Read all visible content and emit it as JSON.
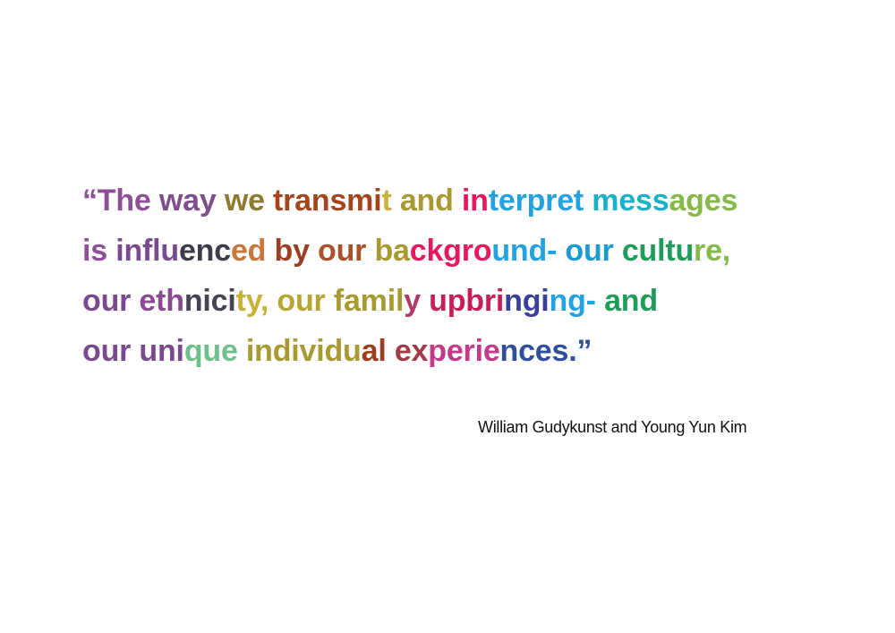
{
  "quote": {
    "lines": [
      [
        {
          "text": "“The ",
          "color": "#8e4f98"
        },
        {
          "text": "way ",
          "color": "#7d4f8d"
        },
        {
          "text": "we ",
          "color": "#8c7a2e"
        },
        {
          "text": "transmi",
          "color": "#a4451e"
        },
        {
          "text": "t ",
          "color": "#c8b23a"
        },
        {
          "text": "and ",
          "color": "#a79a33"
        },
        {
          "text": "in",
          "color": "#e5195c"
        },
        {
          "text": "terpret ",
          "color": "#22a2df"
        },
        {
          "text": "mess",
          "color": "#1bb2c9"
        },
        {
          "text": "ages",
          "color": "#86b94a"
        }
      ],
      [
        {
          "text": "is ",
          "color": "#8e4f98"
        },
        {
          "text": "influ",
          "color": "#7a4a8f"
        },
        {
          "text": "enc",
          "color": "#3d3d4a"
        },
        {
          "text": "ed ",
          "color": "#c8763a"
        },
        {
          "text": "by ",
          "color": "#9b3f22"
        },
        {
          "text": "our ",
          "color": "#a9512a"
        },
        {
          "text": "ba",
          "color": "#a79a33"
        },
        {
          "text": "ckgro",
          "color": "#e5195c"
        },
        {
          "text": "und- ",
          "color": "#22a2df"
        },
        {
          "text": "our ",
          "color": "#1b9bd0"
        },
        {
          "text": "cultu",
          "color": "#1f9c5c"
        },
        {
          "text": "re,",
          "color": "#86b94a"
        }
      ],
      [
        {
          "text": "our ",
          "color": "#7a4a8f"
        },
        {
          "text": "eth",
          "color": "#8a4a92"
        },
        {
          "text": "nici",
          "color": "#444455"
        },
        {
          "text": "ty, ",
          "color": "#c8b23a"
        },
        {
          "text": "our ",
          "color": "#b4a632"
        },
        {
          "text": "famil",
          "color": "#a79a33"
        },
        {
          "text": "y ",
          "color": "#b03a6a"
        },
        {
          "text": "upbri",
          "color": "#c81e58"
        },
        {
          "text": "ngi",
          "color": "#3a3f99"
        },
        {
          "text": "ng- ",
          "color": "#22a2df"
        },
        {
          "text": "and",
          "color": "#1f9c5c"
        }
      ],
      [
        {
          "text": "our ",
          "color": "#7a4a8f"
        },
        {
          "text": "uni",
          "color": "#7a4a8f"
        },
        {
          "text": "que ",
          "color": "#6dbf8e"
        },
        {
          "text": "individu",
          "color": "#a79a33"
        },
        {
          "text": "al ",
          "color": "#9b3f22"
        },
        {
          "text": "ex",
          "color": "#a33a4a"
        },
        {
          "text": "perie",
          "color": "#c33a8a"
        },
        {
          "text": "nces.”",
          "color": "#2f4f9a"
        }
      ]
    ]
  },
  "attribution": "William Gudykunst and Young Yun Kim"
}
